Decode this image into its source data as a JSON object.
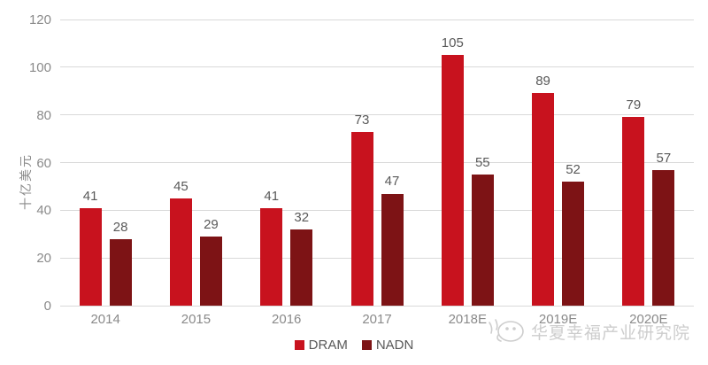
{
  "chart_data": {
    "type": "bar",
    "title": "",
    "xlabel": "",
    "ylabel": "十亿美元",
    "categories": [
      "2014",
      "2015",
      "2016",
      "2017",
      "2018E",
      "2019E",
      "2020E"
    ],
    "series": [
      {
        "name": "DRAM",
        "color": "#c8121e",
        "values": [
          41,
          45,
          41,
          73,
          105,
          89,
          79
        ]
      },
      {
        "name": "NADN",
        "color": "#7d1315",
        "values": [
          28,
          29,
          32,
          47,
          55,
          52,
          57
        ]
      }
    ],
    "ylim": [
      0,
      120
    ],
    "yticks": [
      0,
      20,
      40,
      60,
      80,
      100,
      120
    ],
    "grid": true,
    "legend_position": "bottom",
    "data_labels": true
  },
  "colors": {
    "gridline": "#d9d9d9",
    "tick_label": "#8a8a8a",
    "data_label": "#595959",
    "watermark": "#cdcdcd"
  },
  "watermark": {
    "text": "华夏幸福产业研究院",
    "logo": "doodle-face-logo"
  }
}
